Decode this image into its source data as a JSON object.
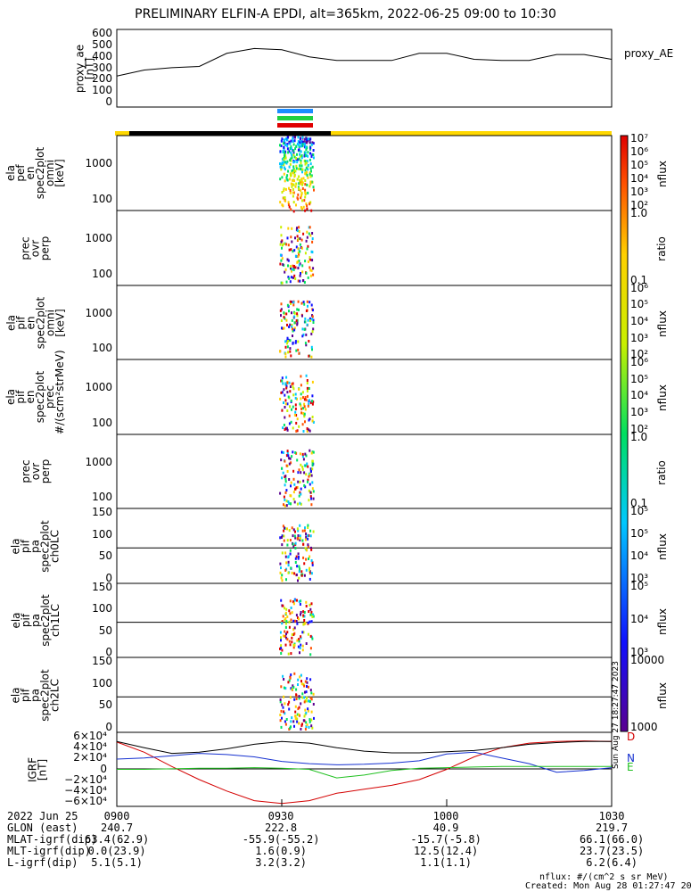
{
  "title": "PRELIMINARY ELFIN-A EPDI, alt=365km, 2022-06-25 09:00 to 10:30",
  "panels": [
    {
      "ylabel": "proxy_ae\n[nT]",
      "right_label": "proxy_AE",
      "ticks": [
        "600",
        "500",
        "400",
        "300",
        "200",
        "100",
        "0"
      ]
    },
    {
      "ylabel": "ela\npef\nen\nspec2plot\nomni\n[keV]",
      "ticks": [
        "1000",
        "100"
      ],
      "cb_ticks": [
        "10⁷",
        "10⁶",
        "10⁵",
        "10⁴",
        "10³",
        "10²"
      ],
      "cb_name": "nflux"
    },
    {
      "ylabel": "prec\novr\nperp",
      "ticks": [
        "1000",
        "100"
      ],
      "cb_ticks": [
        "1.0",
        "0.1"
      ],
      "cb_name": "ratio"
    },
    {
      "ylabel": "ela\npif\nen\nspec2plot\nomni\n[keV]",
      "ticks": [
        "1000",
        "100"
      ],
      "cb_ticks": [
        "10⁶",
        "10⁵",
        "10⁴",
        "10³",
        "10²"
      ],
      "cb_name": "nflux"
    },
    {
      "ylabel": "ela\npif\nen\nspec2plot\nprec\n#/(scm²strMeV)",
      "ticks": [
        "1000",
        "100"
      ],
      "cb_ticks": [
        "10⁶",
        "10⁵",
        "10⁴",
        "10³",
        "10²"
      ],
      "cb_name": "nflux"
    },
    {
      "ylabel": "prec\novr\nperp",
      "ticks": [
        "1000",
        "100"
      ],
      "cb_ticks": [
        "1.0",
        "0.1"
      ],
      "cb_name": "ratio"
    },
    {
      "ylabel": "ela\npif\npa\nspec2plot\nch0LC",
      "ticks": [
        "150",
        "100",
        "50",
        "0"
      ],
      "cb_ticks": [
        "10⁵",
        "10⁵",
        "10⁴",
        "10³"
      ],
      "cb_name": "nflux"
    },
    {
      "ylabel": "ela\npif\npa\nspec2plot\nch1LC",
      "ticks": [
        "150",
        "100",
        "50",
        "0"
      ],
      "cb_ticks": [
        "10⁵",
        "10⁴",
        "10³"
      ],
      "cb_name": "nflux"
    },
    {
      "ylabel": "ela\npif\npa\nspec2plot\nch2LC",
      "ticks": [
        "150",
        "100",
        "50",
        "0"
      ],
      "cb_ticks": [
        "10000",
        "1000"
      ],
      "cb_name": "nflux"
    },
    {
      "ylabel": "IGRF\n[nT]",
      "ticks": [
        "6×10⁴",
        "4×10⁴",
        "2×10⁴",
        "0",
        "−2×10⁴",
        "−4×10⁴",
        "−6×10⁴"
      ],
      "legend": [
        "D",
        "N",
        "E"
      ]
    }
  ],
  "side_stamp": "Sun Aug 27 18:27:47 2023",
  "footer": {
    "rows": [
      {
        "label": "2022 Jun 25",
        "values": [
          "0900",
          "0930",
          "1000",
          "1030"
        ]
      },
      {
        "label": "GLON (east)",
        "values": [
          "240.7",
          "222.8",
          "40.9",
          "219.7"
        ]
      },
      {
        "label": "MLAT-igrf(dip)",
        "values": [
          "63.4(62.9)",
          "-55.9(-55.2)",
          "-15.7(-5.8)",
          "66.1(66.0)"
        ]
      },
      {
        "label": "MLT-igrf(dip)",
        "values": [
          "0.0(23.9)",
          "1.6(0.9)",
          "12.5(12.4)",
          "23.7(23.5)"
        ]
      },
      {
        "label": "L-igrf(dip)",
        "values": [
          "5.1(5.1)",
          "3.2(3.2)",
          "1.1(1.1)",
          "6.2(6.4)"
        ]
      }
    ],
    "note1": "nflux: #/(cm^2 s sr MeV)",
    "note2": "Created: Mon Aug 28 01:27:47 2023"
  },
  "colors": {
    "D": "#d40000",
    "N": "#1530d0",
    "E": "#20c020",
    "ae": "#000000",
    "bar_yellow": "#ffd800",
    "bar_black": "#000000"
  },
  "chart_data": [
    {
      "type": "line",
      "name": "proxy_AE",
      "ylim": [
        0,
        650
      ],
      "x": [
        "09:00",
        "09:05",
        "09:10",
        "09:15",
        "09:20",
        "09:25",
        "09:30",
        "09:35",
        "09:40",
        "09:45",
        "09:50",
        "09:55",
        "10:00",
        "10:05",
        "10:10",
        "10:15",
        "10:20",
        "10:25",
        "10:30"
      ],
      "values": [
        260,
        310,
        330,
        340,
        450,
        490,
        480,
        420,
        390,
        390,
        390,
        450,
        450,
        400,
        390,
        390,
        440,
        440,
        400
      ]
    },
    {
      "type": "line",
      "name": "IGRF",
      "ylim": [
        -65000,
        65000
      ],
      "x": [
        "09:00",
        "09:05",
        "09:10",
        "09:15",
        "09:20",
        "09:25",
        "09:30",
        "09:35",
        "09:40",
        "09:45",
        "09:50",
        "09:55",
        "10:00",
        "10:05",
        "10:10",
        "10:15",
        "10:20",
        "10:25",
        "10:30"
      ],
      "series": [
        {
          "name": "D",
          "values": [
            48000,
            30000,
            5000,
            -18000,
            -38000,
            -55000,
            -60000,
            -55000,
            -42000,
            -35000,
            -28000,
            -18000,
            0,
            22000,
            38000,
            46000,
            49000,
            50000,
            49000
          ]
        },
        {
          "name": "N",
          "values": [
            18000,
            20000,
            24000,
            28000,
            26000,
            22000,
            14000,
            10000,
            8000,
            9000,
            11000,
            15000,
            27000,
            30000,
            20000,
            10000,
            -5000,
            -2000,
            3000
          ]
        },
        {
          "name": "E",
          "values": [
            0,
            0,
            1000,
            2000,
            2000,
            3000,
            2000,
            0,
            -15000,
            -10000,
            -2000,
            2000,
            3000,
            4000,
            5000,
            5000,
            5000,
            5000,
            5000
          ]
        },
        {
          "name": "total",
          "values": [
            49000,
            38000,
            28000,
            30000,
            36000,
            44000,
            49000,
            46000,
            38000,
            32000,
            29000,
            29000,
            31000,
            33000,
            38000,
            44000,
            47000,
            49000,
            49000
          ]
        }
      ]
    }
  ]
}
